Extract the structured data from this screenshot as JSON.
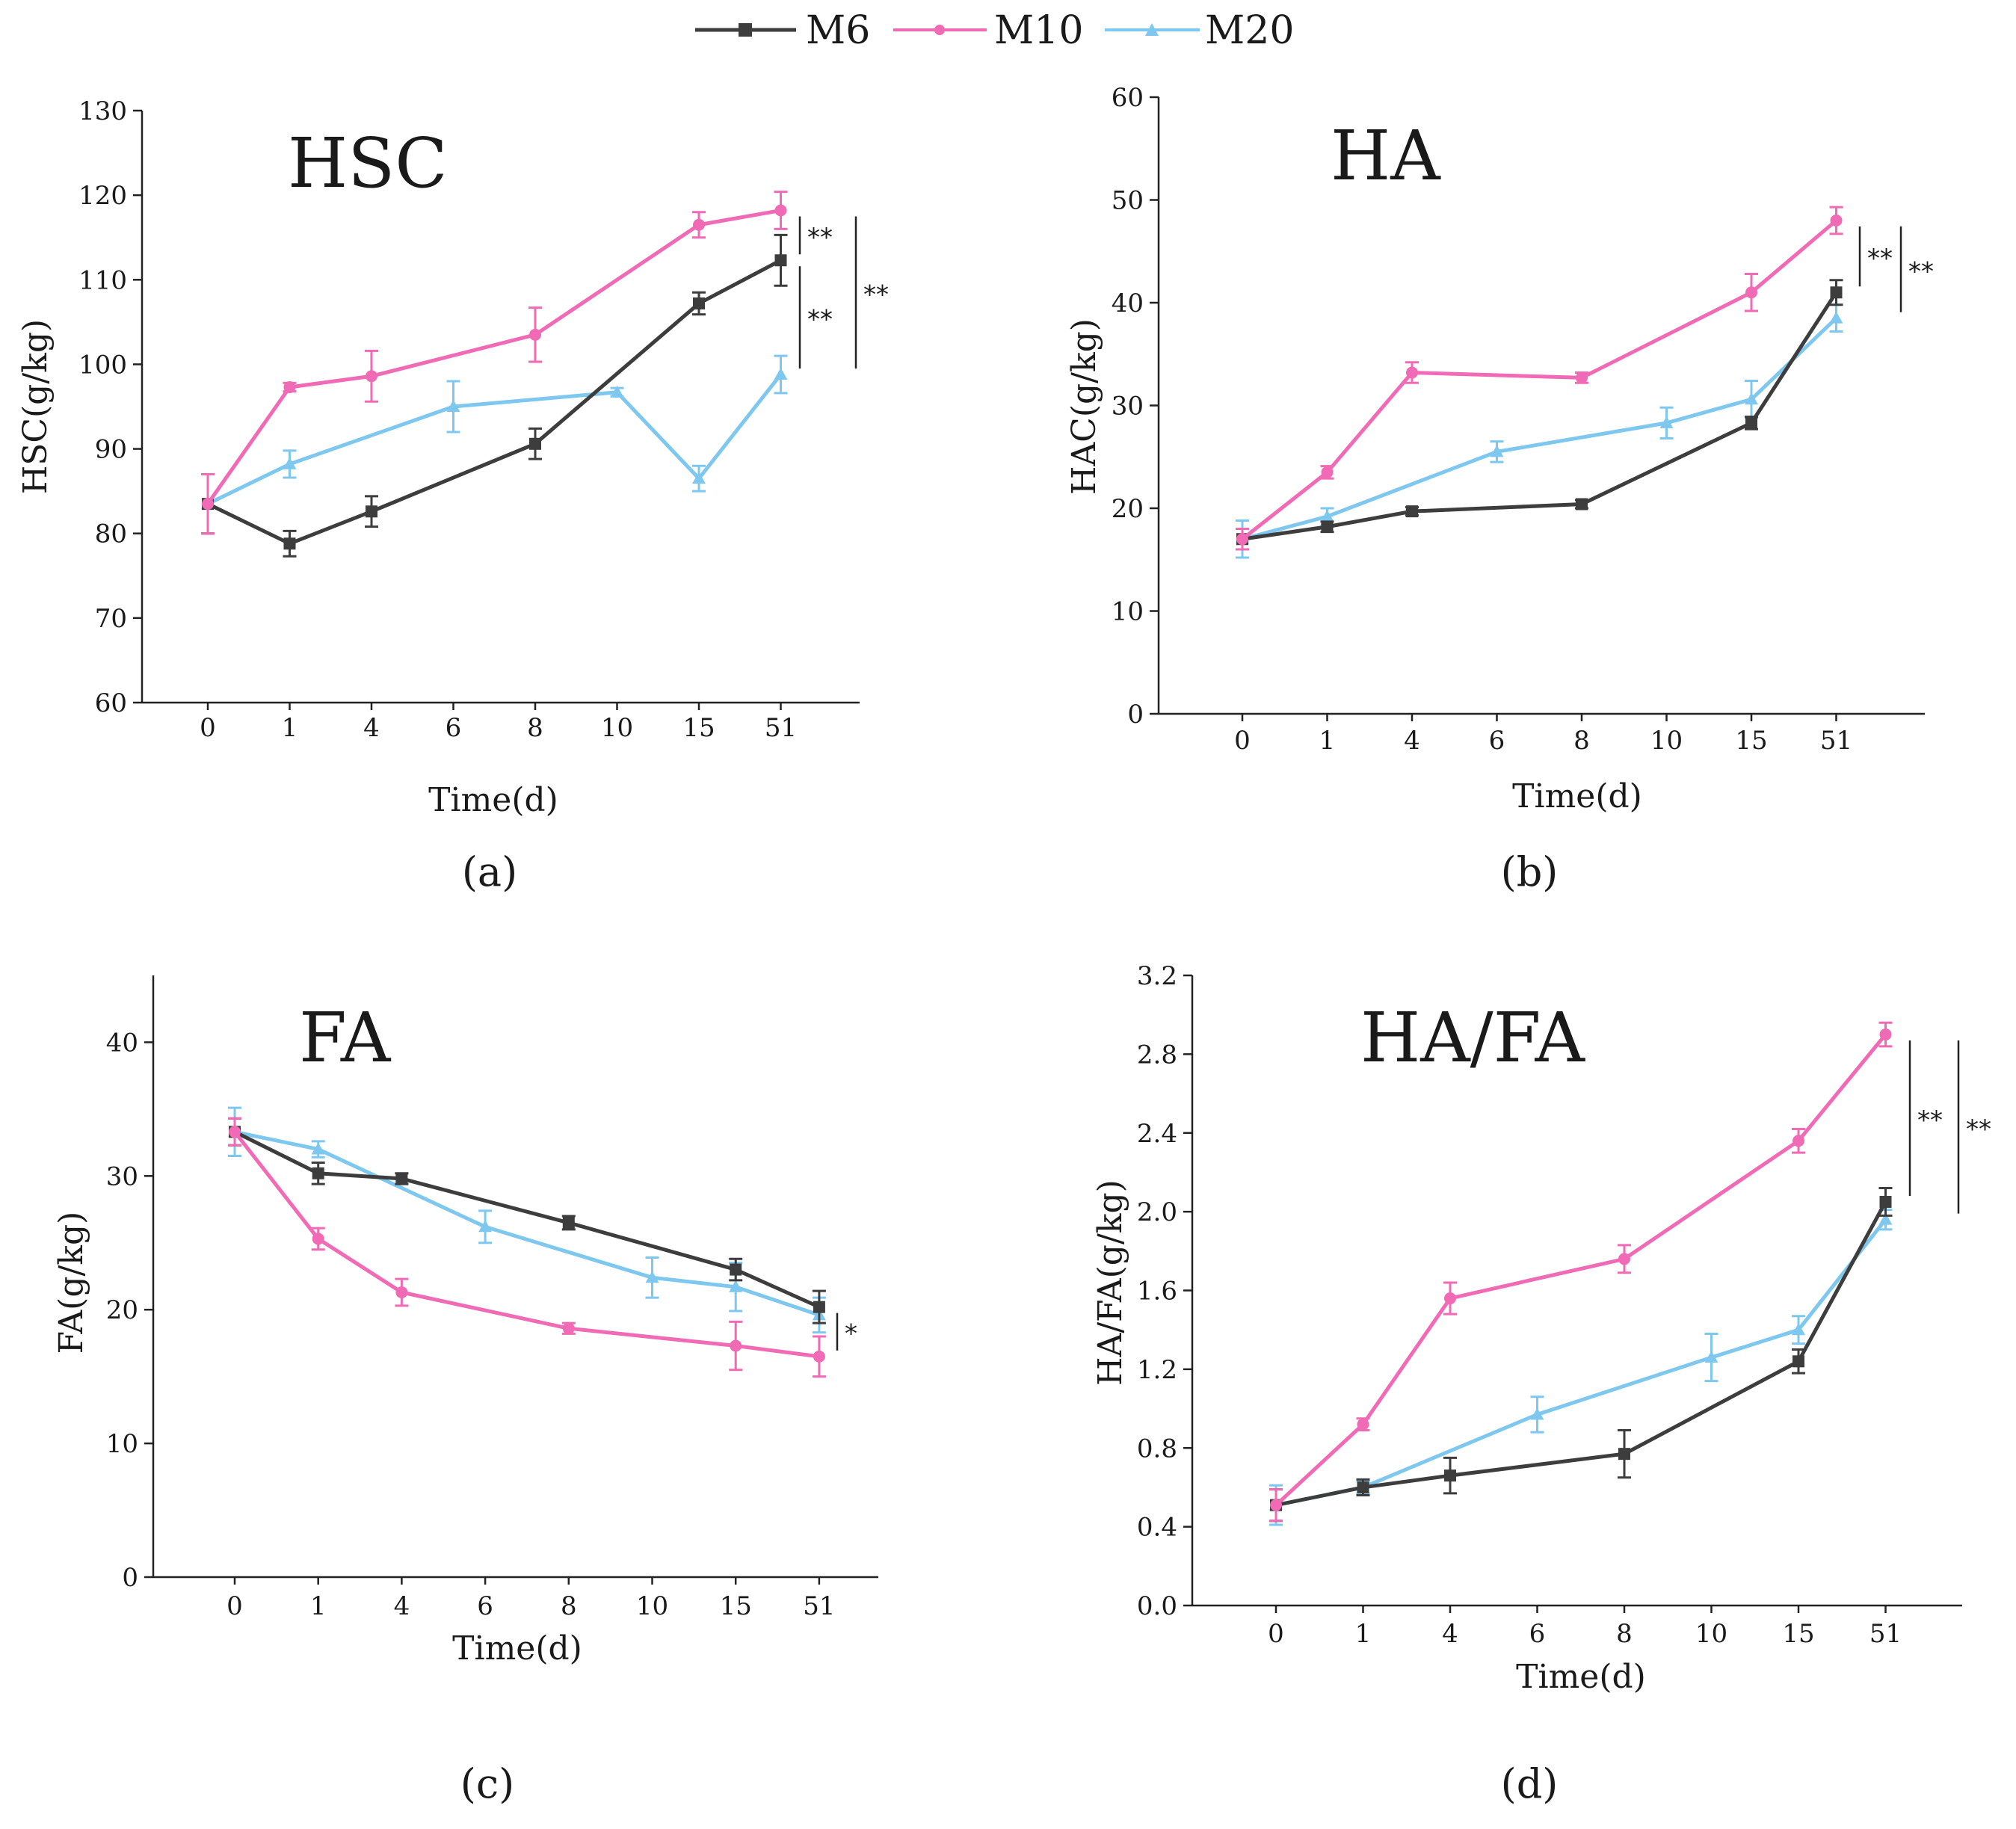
{
  "colors": {
    "M6": "#3d3d3d",
    "M10": "#f06ab5",
    "M20": "#7ec8f0",
    "axis": "#222222"
  },
  "legend": [
    {
      "name": "M6",
      "marker": "square"
    },
    {
      "name": "M10",
      "marker": "circle"
    },
    {
      "name": "M20",
      "marker": "triangle"
    }
  ],
  "chart_data": [
    {
      "id": "a",
      "type": "line",
      "title": "HSC",
      "panel_label": "(a)",
      "xlabel": "Time(d)",
      "ylabel": "HSC(g/kg)",
      "categories": [
        "0",
        "1",
        "4",
        "6",
        "8",
        "10",
        "15",
        "51"
      ],
      "ylim": [
        60,
        130
      ],
      "yticks": [
        60,
        70,
        80,
        90,
        100,
        110,
        120,
        130
      ],
      "series": [
        {
          "name": "M6",
          "x": [
            0,
            1,
            2,
            4,
            6,
            7
          ],
          "values": [
            83.5,
            78.8,
            82.6,
            90.6,
            107.2,
            112.3
          ],
          "errors": [
            3.5,
            1.5,
            1.8,
            1.8,
            1.3,
            3.0
          ]
        },
        {
          "name": "M10",
          "x": [
            0,
            1,
            2,
            4,
            6,
            7
          ],
          "values": [
            83.5,
            97.3,
            98.6,
            103.5,
            116.5,
            118.2
          ],
          "errors": [
            3.5,
            0.5,
            3.0,
            3.2,
            1.5,
            2.2
          ]
        },
        {
          "name": "M20",
          "x": [
            0,
            1,
            3,
            5,
            6,
            7
          ],
          "values": [
            83.5,
            88.2,
            95.0,
            96.7,
            86.5,
            98.8
          ],
          "errors": [
            3.5,
            1.6,
            3.0,
            0.5,
            1.5,
            2.2
          ]
        }
      ],
      "brackets": [
        {
          "lo": 112.3,
          "hi": 118.2,
          "label": "**",
          "offset": 0
        },
        {
          "lo": 98.8,
          "hi": 112.3,
          "label": "**",
          "offset": 0
        },
        {
          "lo": 98.8,
          "hi": 118.2,
          "label": "**",
          "offset": 1
        }
      ]
    },
    {
      "id": "b",
      "type": "line",
      "title": "HA",
      "panel_label": "(b)",
      "xlabel": "Time(d)",
      "ylabel": "HAC(g/kg)",
      "categories": [
        "0",
        "1",
        "4",
        "6",
        "8",
        "10",
        "15",
        "51"
      ],
      "ylim": [
        0,
        60
      ],
      "yticks": [
        0,
        10,
        20,
        30,
        40,
        50,
        60
      ],
      "series": [
        {
          "name": "M6",
          "x": [
            0,
            1,
            2,
            4,
            6,
            7
          ],
          "values": [
            17.0,
            18.2,
            19.7,
            20.4,
            28.3,
            41.0
          ],
          "errors": [
            1.0,
            0.5,
            0.4,
            0.4,
            0.6,
            1.2
          ]
        },
        {
          "name": "M10",
          "x": [
            0,
            1,
            2,
            4,
            6,
            7
          ],
          "values": [
            17.0,
            23.5,
            33.2,
            32.7,
            41.0,
            48.0
          ],
          "errors": [
            1.0,
            0.6,
            1.0,
            0.5,
            1.8,
            1.3
          ]
        },
        {
          "name": "M20",
          "x": [
            0,
            1,
            3,
            5,
            6,
            7
          ],
          "values": [
            17.0,
            19.2,
            25.5,
            28.3,
            30.6,
            38.5
          ],
          "errors": [
            1.8,
            0.8,
            1.0,
            1.5,
            1.8,
            1.3
          ]
        }
      ],
      "brackets": [
        {
          "lo": 41.0,
          "hi": 48.0,
          "label": "**",
          "offset": 0
        },
        {
          "lo": 38.5,
          "hi": 48.0,
          "label": "**",
          "offset": 1
        }
      ]
    },
    {
      "id": "c",
      "type": "line",
      "title": "FA",
      "panel_label": "(c)",
      "xlabel": "Time(d)",
      "ylabel": "FA(g/kg)",
      "categories": [
        "0",
        "1",
        "4",
        "6",
        "8",
        "10",
        "15",
        "51"
      ],
      "ylim": [
        0,
        45
      ],
      "yticks": [
        0,
        10,
        20,
        30,
        40
      ],
      "series": [
        {
          "name": "M6",
          "x": [
            0,
            1,
            2,
            4,
            6,
            7
          ],
          "values": [
            33.3,
            30.2,
            29.8,
            26.5,
            23.0,
            20.2
          ],
          "errors": [
            1.0,
            0.8,
            0.4,
            0.5,
            0.8,
            1.2
          ]
        },
        {
          "name": "M10",
          "x": [
            0,
            1,
            2,
            4,
            6,
            7
          ],
          "values": [
            33.3,
            25.3,
            21.3,
            18.6,
            17.3,
            16.5
          ],
          "errors": [
            1.0,
            0.8,
            1.0,
            0.4,
            1.8,
            1.5
          ]
        },
        {
          "name": "M20",
          "x": [
            0,
            1,
            3,
            5,
            6,
            7
          ],
          "values": [
            33.3,
            32.0,
            26.2,
            22.4,
            21.7,
            19.6
          ],
          "errors": [
            1.8,
            0.6,
            1.2,
            1.5,
            1.8,
            1.3
          ]
        }
      ],
      "brackets": [
        {
          "lo": 16.5,
          "hi": 20.2,
          "label": "*",
          "offset": 0
        }
      ]
    },
    {
      "id": "d",
      "type": "line",
      "title": "HA/FA",
      "panel_label": "(d)",
      "xlabel": "Time(d)",
      "ylabel": "HA/FA(g/kg)",
      "categories": [
        "0",
        "1",
        "4",
        "6",
        "8",
        "10",
        "15",
        "51"
      ],
      "ylim": [
        0,
        3.2
      ],
      "yticks": [
        "0.0",
        "0.4",
        "0.8",
        "1.2",
        "1.6",
        "2.0",
        "2.4",
        "2.8",
        "3.2"
      ],
      "series": [
        {
          "name": "M6",
          "x": [
            0,
            1,
            2,
            4,
            6,
            7
          ],
          "values": [
            0.51,
            0.6,
            0.66,
            0.77,
            1.24,
            2.05
          ],
          "errors": [
            0.08,
            0.04,
            0.09,
            0.12,
            0.06,
            0.07
          ]
        },
        {
          "name": "M10",
          "x": [
            0,
            1,
            2,
            4,
            6,
            7
          ],
          "values": [
            0.51,
            0.92,
            1.56,
            1.76,
            2.36,
            2.9
          ],
          "errors": [
            0.08,
            0.03,
            0.08,
            0.07,
            0.06,
            0.06
          ]
        },
        {
          "name": "M20",
          "x": [
            0,
            1,
            3,
            5,
            6,
            7
          ],
          "values": [
            0.51,
            0.6,
            0.97,
            1.26,
            1.4,
            1.96
          ],
          "errors": [
            0.1,
            0.03,
            0.09,
            0.12,
            0.07,
            0.05
          ]
        }
      ],
      "brackets": [
        {
          "lo": 2.05,
          "hi": 2.9,
          "label": "**",
          "offset": 0
        },
        {
          "lo": 1.96,
          "hi": 2.9,
          "label": "**",
          "offset": 1
        }
      ]
    }
  ]
}
